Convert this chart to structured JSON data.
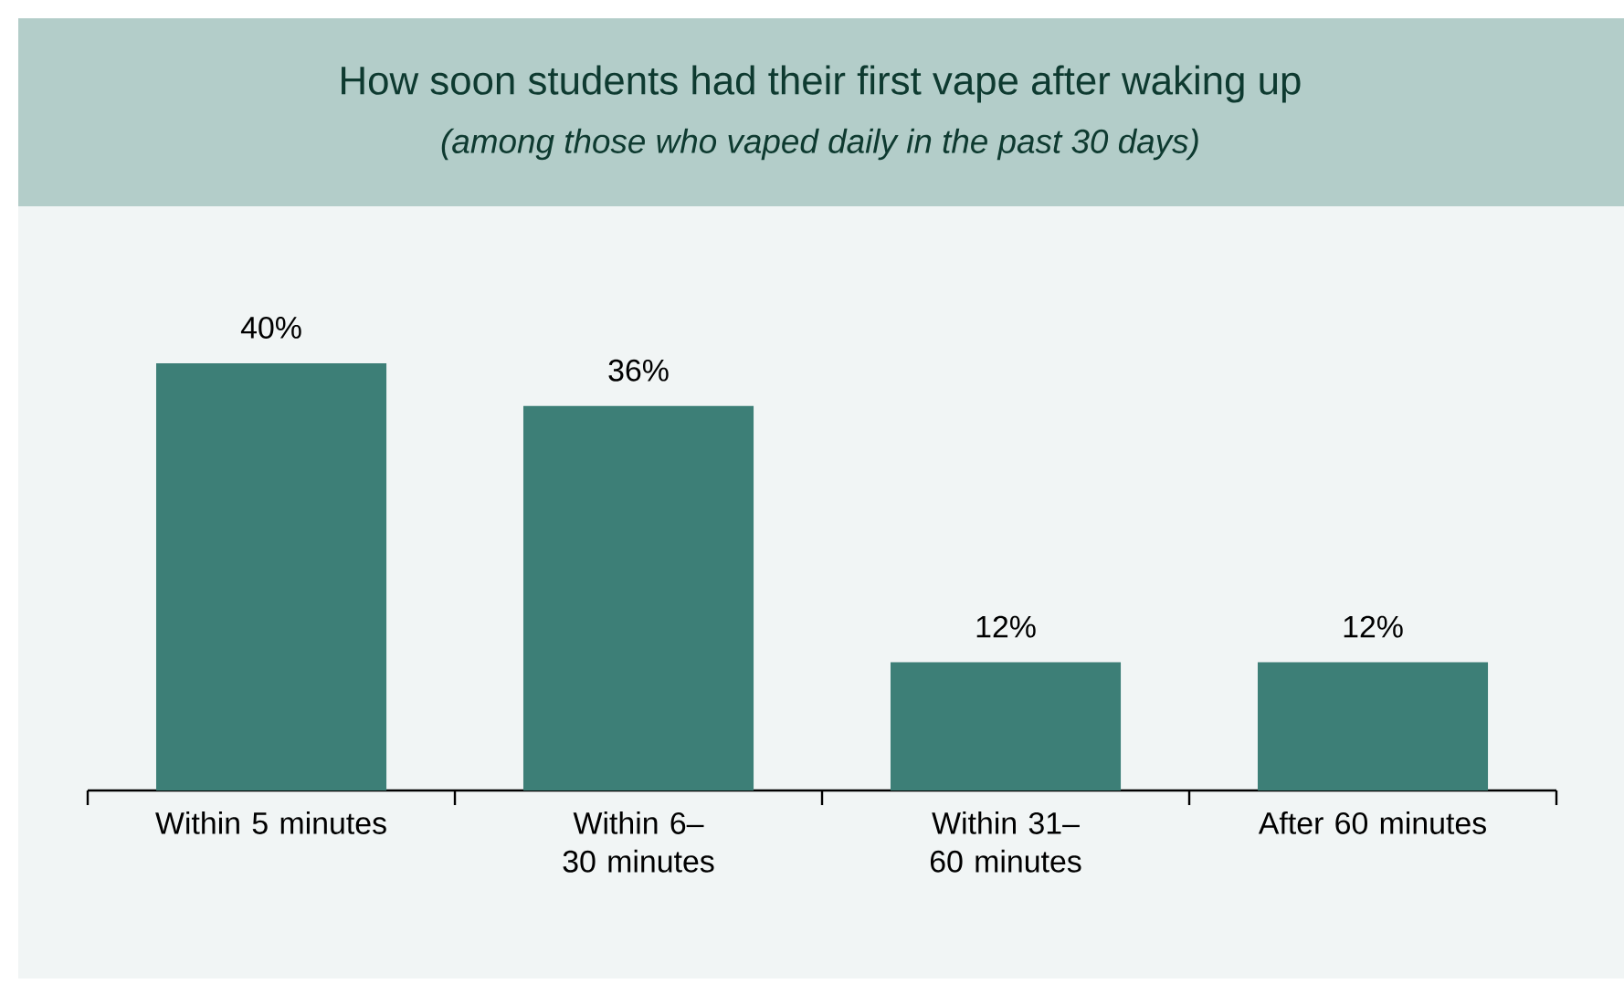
{
  "chart_data": {
    "type": "bar",
    "title": "How soon students had their first vape after waking up",
    "subtitle": "(among those who vaped daily in the past 30 days)",
    "categories": [
      "Within 5 minutes",
      "Within 6–30 minutes",
      "Within 31–60 minutes",
      "After 60 minutes"
    ],
    "values": [
      40,
      36,
      12,
      12
    ],
    "value_labels": [
      "40%",
      "36%",
      "12%",
      "12%"
    ],
    "color": "#3d7f77"
  }
}
